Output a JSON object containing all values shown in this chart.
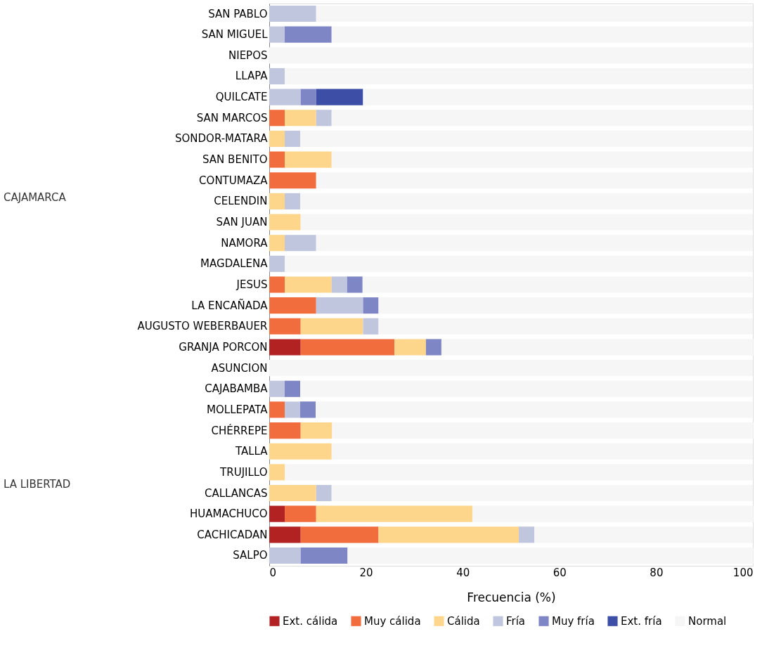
{
  "chart_data": {
    "type": "bar",
    "orientation": "horizontal",
    "stacked": true,
    "categories": [
      "SAN PABLO",
      "SAN MIGUEL",
      "NIEPOS",
      "LLAPA",
      "QUILCATE",
      "SAN MARCOS",
      "SONDOR-MATARA",
      "SAN BENITO",
      "CONTUMAZA",
      "CELENDIN",
      "SAN JUAN",
      "NAMORA",
      "MAGDALENA",
      "JESUS",
      "LA ENCAÑADA",
      "AUGUSTO WEBERBAUER",
      "GRANJA PORCON",
      "ASUNCION",
      "CAJABAMBA",
      "MOLLEPATA",
      "CHÉRREPE",
      "TALLA",
      "TRUJILLO",
      "CALLANCAS",
      "HUAMACHUCO",
      "CACHICADAN",
      "SALPO"
    ],
    "series": [
      {
        "name": "Ext. cálida",
        "color": "#b22222",
        "values": [
          0,
          0,
          0,
          0,
          0,
          0,
          0,
          0,
          0,
          0,
          0,
          0,
          0,
          0,
          0,
          0,
          6.5,
          0,
          0,
          0,
          0,
          0,
          0,
          0,
          3.2,
          6.5,
          0
        ]
      },
      {
        "name": "Muy cálida",
        "color": "#f26d3d",
        "values": [
          0,
          0,
          0,
          0,
          0,
          3.2,
          0,
          3.2,
          9.7,
          0,
          0,
          0,
          0,
          3.2,
          9.7,
          6.5,
          19.4,
          0,
          0,
          3.2,
          6.5,
          0,
          0,
          0,
          6.5,
          16.1,
          0
        ]
      },
      {
        "name": "Cálida",
        "color": "#fdd68b",
        "values": [
          0,
          0,
          0,
          0,
          0,
          6.5,
          3.2,
          9.7,
          0,
          3.2,
          6.5,
          3.2,
          0,
          9.7,
          0,
          12.9,
          6.5,
          0,
          0,
          0,
          6.5,
          12.9,
          3.2,
          9.7,
          32.3,
          29.0,
          0
        ]
      },
      {
        "name": "Fría",
        "color": "#c0c6de",
        "values": [
          9.7,
          3.2,
          0,
          3.2,
          6.5,
          3.2,
          3.2,
          0,
          0,
          3.2,
          0,
          6.5,
          3.2,
          3.2,
          9.7,
          3.2,
          0,
          0,
          3.2,
          3.2,
          0,
          0,
          0,
          3.2,
          0,
          3.2,
          6.5
        ]
      },
      {
        "name": "Muy fría",
        "color": "#7e86c6",
        "values": [
          0,
          9.7,
          0,
          0,
          3.2,
          0,
          0,
          0,
          0,
          0,
          0,
          0,
          0,
          3.2,
          3.2,
          0,
          3.2,
          0,
          3.2,
          3.2,
          0,
          0,
          0,
          0,
          0,
          0,
          9.7
        ]
      },
      {
        "name": "Ext. fría",
        "color": "#3d4ea6",
        "values": [
          0,
          0,
          0,
          0,
          9.7,
          0,
          0,
          0,
          0,
          0,
          0,
          0,
          0,
          0,
          0,
          0,
          0,
          0,
          0,
          0,
          0,
          0,
          0,
          0,
          0,
          0,
          0
        ]
      },
      {
        "name": "Normal",
        "color": "#f6f6f6",
        "values": [
          90.3,
          87.1,
          100,
          96.8,
          80.6,
          87.1,
          93.5,
          87.1,
          90.3,
          93.5,
          93.5,
          90.3,
          96.8,
          80.6,
          77.4,
          77.4,
          64.5,
          100,
          93.5,
          90.3,
          87.1,
          87.1,
          96.8,
          87.1,
          58.1,
          45.2,
          83.9
        ]
      }
    ],
    "xlim": [
      0,
      100
    ],
    "xticks": [
      0,
      20,
      40,
      60,
      80,
      100
    ],
    "xlabel": "Frecuencia (%)",
    "annotations": [
      "CAJAMARCA",
      "LA LIBERTAD"
    ],
    "legend": "bottom",
    "grid": false
  }
}
